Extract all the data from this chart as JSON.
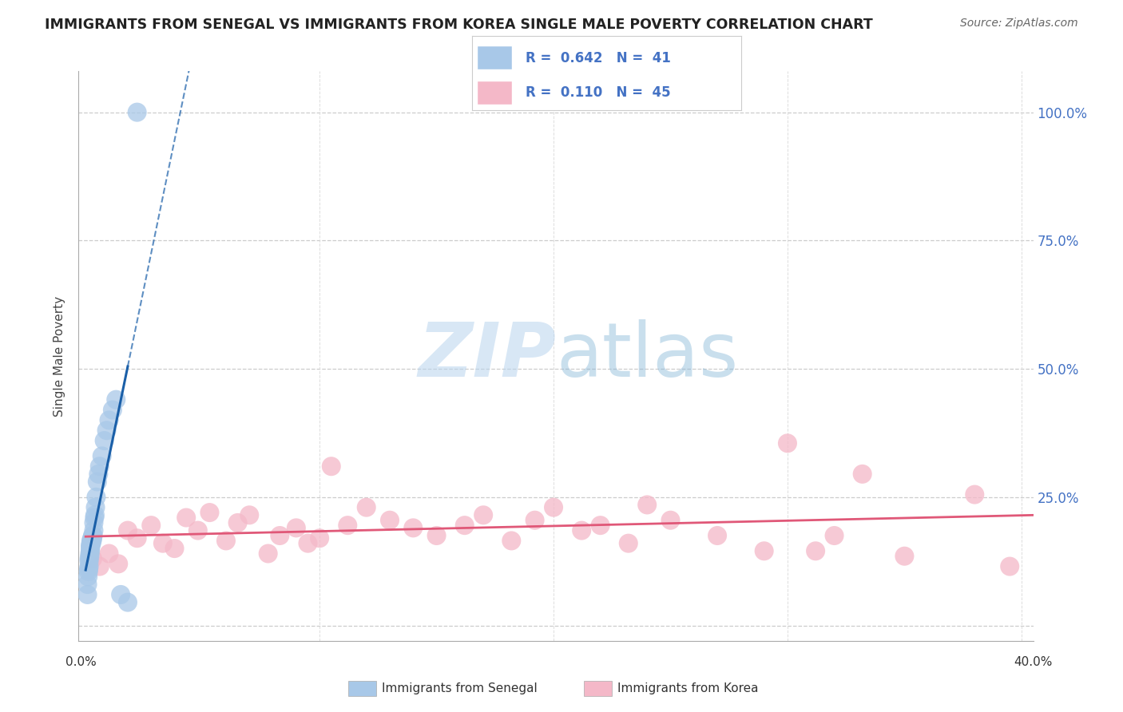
{
  "title": "IMMIGRANTS FROM SENEGAL VS IMMIGRANTS FROM KOREA SINGLE MALE POVERTY CORRELATION CHART",
  "source": "Source: ZipAtlas.com",
  "ylabel": "Single Male Poverty",
  "legend1_R": "0.642",
  "legend1_N": "41",
  "legend2_R": "0.110",
  "legend2_N": "45",
  "senegal_color": "#a8c8e8",
  "korea_color": "#f4b8c8",
  "senegal_line_color": "#1a5fa8",
  "korea_line_color": "#e05878",
  "watermark_zip": "ZIP",
  "watermark_atlas": "atlas",
  "xlim": [
    -0.003,
    0.405
  ],
  "ylim": [
    -0.03,
    1.08
  ],
  "yticks": [
    0.0,
    0.25,
    0.5,
    0.75,
    1.0
  ],
  "ytick_labels_right": [
    "",
    "25.0%",
    "50.0%",
    "75.0%",
    "100.0%"
  ],
  "senegal_x": [
    0.0008,
    0.0008,
    0.001,
    0.0012,
    0.0013,
    0.0015,
    0.0015,
    0.0015,
    0.0018,
    0.0018,
    0.002,
    0.002,
    0.002,
    0.0022,
    0.0022,
    0.0023,
    0.0025,
    0.0025,
    0.0027,
    0.0028,
    0.003,
    0.003,
    0.0032,
    0.0035,
    0.0035,
    0.0038,
    0.004,
    0.0042,
    0.0045,
    0.005,
    0.0055,
    0.006,
    0.007,
    0.008,
    0.009,
    0.01,
    0.0115,
    0.013,
    0.015,
    0.018,
    0.022
  ],
  "senegal_y": [
    0.06,
    0.08,
    0.095,
    0.105,
    0.11,
    0.115,
    0.125,
    0.13,
    0.135,
    0.14,
    0.145,
    0.15,
    0.155,
    0.155,
    0.16,
    0.165,
    0.16,
    0.165,
    0.17,
    0.165,
    0.17,
    0.175,
    0.175,
    0.185,
    0.2,
    0.21,
    0.215,
    0.23,
    0.25,
    0.28,
    0.295,
    0.31,
    0.33,
    0.36,
    0.38,
    0.4,
    0.42,
    0.44,
    0.06,
    0.045,
    1.0
  ],
  "korea_x": [
    0.003,
    0.006,
    0.01,
    0.014,
    0.018,
    0.022,
    0.028,
    0.033,
    0.038,
    0.043,
    0.048,
    0.053,
    0.06,
    0.065,
    0.07,
    0.078,
    0.083,
    0.09,
    0.095,
    0.1,
    0.105,
    0.112,
    0.12,
    0.13,
    0.14,
    0.15,
    0.162,
    0.17,
    0.182,
    0.192,
    0.2,
    0.212,
    0.22,
    0.232,
    0.24,
    0.25,
    0.27,
    0.29,
    0.3,
    0.312,
    0.32,
    0.332,
    0.35,
    0.38,
    0.395
  ],
  "korea_y": [
    0.13,
    0.115,
    0.14,
    0.12,
    0.185,
    0.17,
    0.195,
    0.16,
    0.15,
    0.21,
    0.185,
    0.22,
    0.165,
    0.2,
    0.215,
    0.14,
    0.175,
    0.19,
    0.16,
    0.17,
    0.31,
    0.195,
    0.23,
    0.205,
    0.19,
    0.175,
    0.195,
    0.215,
    0.165,
    0.205,
    0.23,
    0.185,
    0.195,
    0.16,
    0.235,
    0.205,
    0.175,
    0.145,
    0.355,
    0.145,
    0.175,
    0.295,
    0.135,
    0.255,
    0.115
  ]
}
